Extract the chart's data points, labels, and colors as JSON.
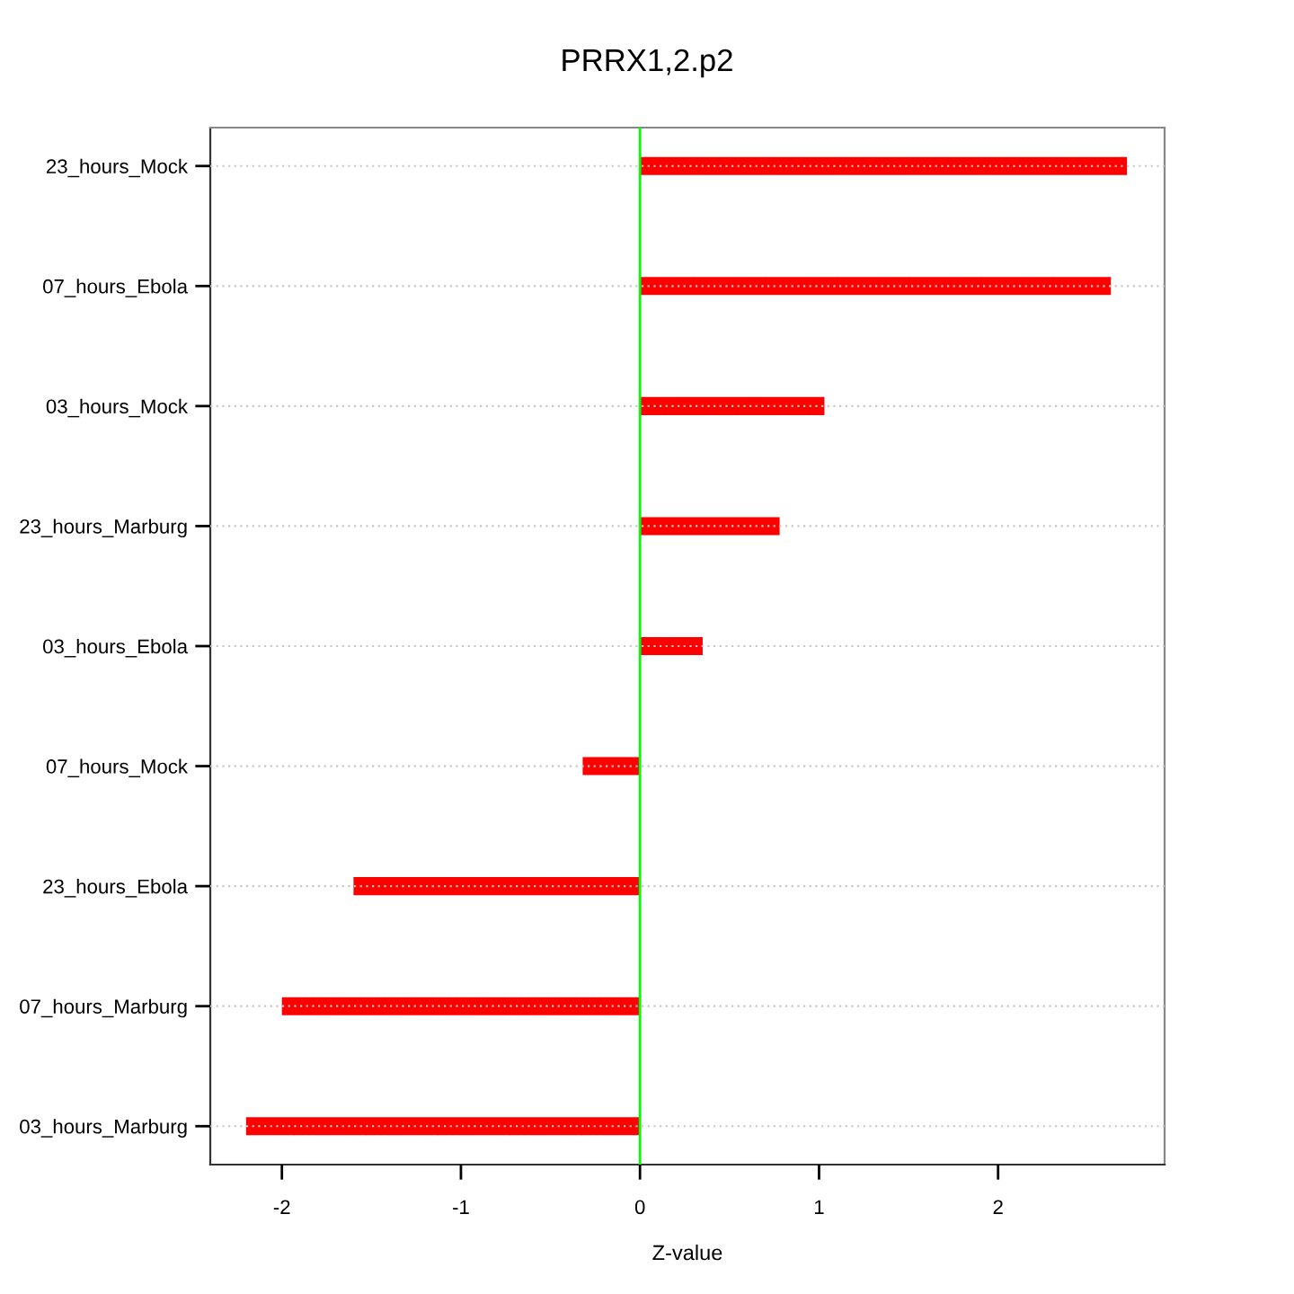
{
  "chart_data": {
    "type": "bar",
    "orientation": "horizontal",
    "title": "PRRX1,2.p2",
    "xlabel": "Z-value",
    "categories": [
      "23_hours_Mock",
      "07_hours_Ebola",
      "03_hours_Mock",
      "23_hours_Marburg",
      "03_hours_Ebola",
      "07_hours_Mock",
      "23_hours_Ebola",
      "07_hours_Marburg",
      "03_hours_Marburg"
    ],
    "values": [
      2.72,
      2.63,
      1.03,
      0.78,
      0.35,
      -0.32,
      -1.6,
      -2.0,
      -2.2
    ],
    "color": "#ff0000",
    "xlim": [
      -2.4,
      2.93
    ],
    "xticks": [
      -2,
      -1,
      0,
      1,
      2
    ],
    "ref_lines": [
      {
        "axis": "x",
        "value": 0,
        "color": "#00ff00",
        "line_style": "solid"
      }
    ],
    "grid": "y",
    "legend": false
  }
}
